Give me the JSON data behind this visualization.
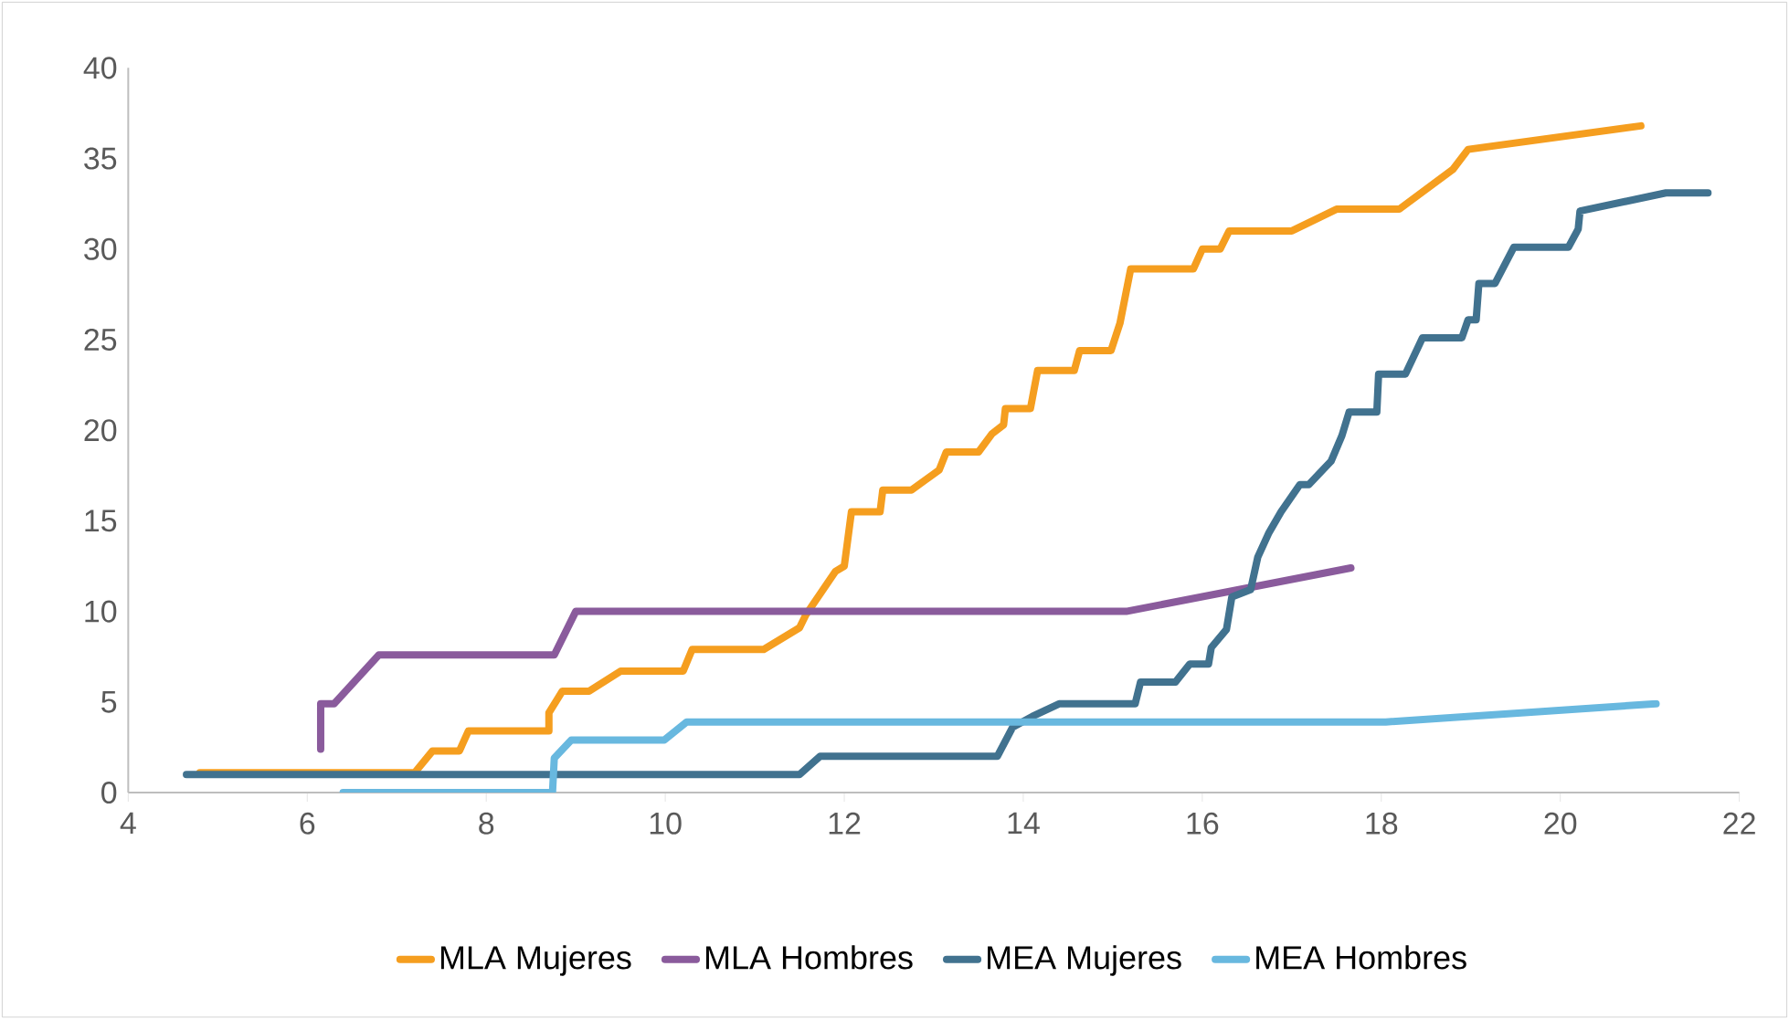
{
  "chart_data": {
    "type": "line",
    "xlim": [
      4,
      22
    ],
    "ylim": [
      0,
      40
    ],
    "xticks": [
      4,
      6,
      8,
      10,
      12,
      14,
      16,
      18,
      20,
      22
    ],
    "yticks": [
      0,
      5,
      10,
      15,
      20,
      25,
      30,
      35,
      40
    ],
    "grid": false,
    "legend": "bottom",
    "marker": "none",
    "line_style": "solid",
    "series": [
      {
        "name": "MLA Mujeres",
        "color": "#f59e1f",
        "x": [
          4.8,
          7.2,
          7.4,
          7.7,
          7.8,
          8.7,
          8.7,
          8.85,
          9.15,
          9.5,
          10.2,
          10.3,
          11.1,
          11.5,
          11.57,
          11.9,
          12.0,
          12.08,
          12.4,
          12.43,
          12.75,
          13.06,
          13.14,
          13.5,
          13.65,
          13.78,
          13.8,
          14.08,
          14.16,
          14.57,
          14.63,
          14.98,
          15.08,
          15.2,
          15.9,
          16.0,
          16.2,
          16.3,
          17.0,
          17.5,
          18.2,
          18.8,
          18.97,
          20.9
        ],
        "values": [
          1.1,
          1.1,
          2.3,
          2.3,
          3.4,
          3.4,
          4.4,
          5.6,
          5.6,
          6.7,
          6.7,
          7.9,
          7.9,
          9.1,
          9.8,
          12.2,
          12.5,
          15.5,
          15.5,
          16.7,
          16.7,
          17.8,
          18.8,
          18.8,
          19.8,
          20.3,
          21.2,
          21.2,
          23.3,
          23.3,
          24.4,
          24.4,
          25.9,
          28.9,
          28.9,
          30,
          30,
          31,
          31,
          32.2,
          32.2,
          34.4,
          35.5,
          36.8
        ]
      },
      {
        "name": "MLA Hombres",
        "color": "#8a5b9c",
        "x": [
          6.15,
          6.15,
          6.3,
          6.8,
          8.76,
          9.0,
          15.15,
          17.66
        ],
        "values": [
          2.4,
          4.9,
          4.9,
          7.6,
          7.6,
          10,
          10,
          12.4
        ]
      },
      {
        "name": "MEA Mujeres",
        "color": "#41728f",
        "x": [
          4.65,
          11.5,
          11.73,
          13.71,
          13.88,
          14.1,
          14.4,
          15.25,
          15.31,
          15.7,
          15.86,
          16.07,
          16.1,
          16.27,
          16.33,
          16.54,
          16.62,
          16.74,
          16.88,
          17.09,
          17.19,
          17.44,
          17.56,
          17.64,
          17.95,
          17.97,
          18.27,
          18.46,
          18.9,
          18.97,
          19.06,
          19.09,
          19.27,
          19.48,
          20.09,
          20.2,
          20.22,
          21.18,
          21.65
        ],
        "values": [
          1,
          1,
          2,
          2,
          3.6,
          4.2,
          4.9,
          4.9,
          6.1,
          6.1,
          7.1,
          7.1,
          8,
          9,
          10.8,
          11.2,
          13,
          14.3,
          15.5,
          17,
          17,
          18.3,
          19.7,
          21,
          21,
          23.1,
          23.1,
          25.1,
          25.1,
          26.1,
          26.1,
          28.1,
          28.1,
          30.1,
          30.1,
          31.1,
          32.1,
          33.1,
          33.1
        ]
      },
      {
        "name": "MEA Hombres",
        "color": "#68b8df",
        "x": [
          6.4,
          8.74,
          8.76,
          8.95,
          9.99,
          10.24,
          18.05,
          21.07
        ],
        "values": [
          0,
          0,
          1.9,
          2.9,
          2.9,
          3.9,
          3.9,
          4.9
        ]
      }
    ]
  }
}
